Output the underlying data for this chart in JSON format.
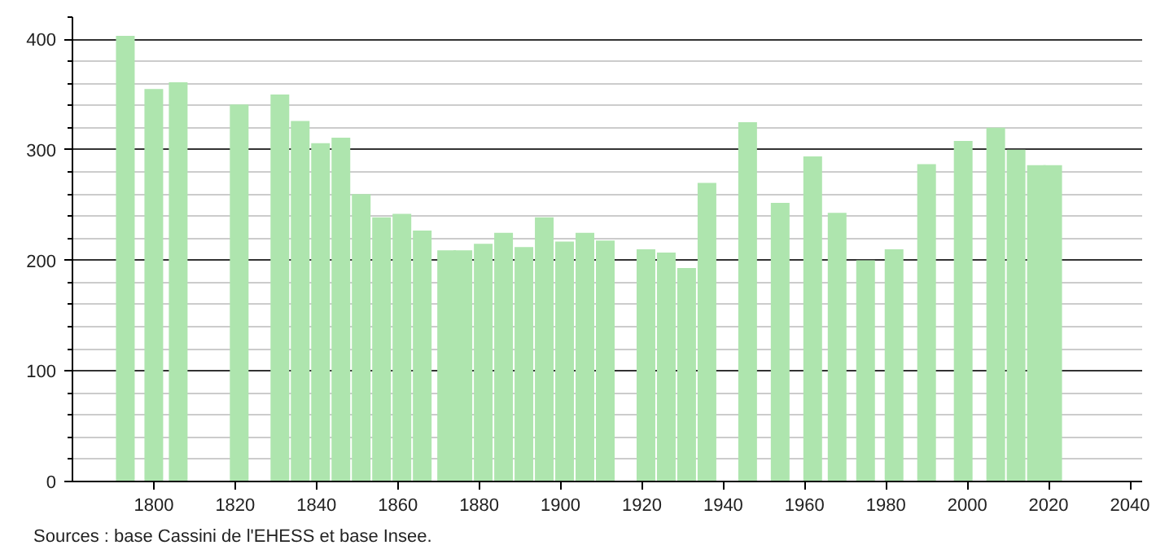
{
  "chart_data": {
    "type": "bar",
    "x": [
      1793,
      1800,
      1806,
      1821,
      1831,
      1836,
      1841,
      1846,
      1851,
      1856,
      1861,
      1866,
      1872,
      1876,
      1881,
      1886,
      1891,
      1896,
      1901,
      1906,
      1911,
      1921,
      1926,
      1931,
      1936,
      1946,
      1954,
      1962,
      1968,
      1975,
      1982,
      1990,
      1999,
      2007,
      2012,
      2017,
      2021
    ],
    "values": [
      403,
      355,
      361,
      341,
      350,
      326,
      306,
      311,
      260,
      239,
      242,
      227,
      209,
      209,
      215,
      225,
      212,
      239,
      217,
      225,
      218,
      210,
      207,
      193,
      270,
      325,
      252,
      294,
      243,
      200,
      210,
      287,
      308,
      320,
      300,
      286,
      286
    ],
    "color": "#aee5ae",
    "xlim": [
      1780,
      2043
    ],
    "xticks": [
      1800,
      1820,
      1840,
      1860,
      1880,
      1900,
      1920,
      1940,
      1960,
      1980,
      2000,
      2020,
      2040
    ],
    "ylim": [
      0,
      420
    ],
    "yticks": [
      0,
      {
        "value": 20,
        "label": null
      },
      {
        "value": 40,
        "label": null
      },
      {
        "value": 60,
        "label": null
      },
      {
        "value": 80,
        "label": null
      },
      100,
      {
        "value": 120,
        "label": null
      },
      {
        "value": 140,
        "label": null
      },
      {
        "value": 160,
        "label": null
      },
      {
        "value": 180,
        "label": null
      },
      200,
      {
        "value": 220,
        "label": null
      },
      {
        "value": 240,
        "label": null
      },
      {
        "value": 260,
        "label": null
      },
      {
        "value": 280,
        "label": null
      },
      300,
      {
        "value": 320,
        "label": null
      },
      {
        "value": 340,
        "label": null
      },
      {
        "value": 360,
        "label": null
      },
      {
        "value": 380,
        "label": null
      },
      400,
      {
        "value": 420,
        "label": null
      }
    ],
    "grid": "y",
    "annotations": [
      "Sources : base Cassini de l'EHESS et base Insee."
    ]
  }
}
